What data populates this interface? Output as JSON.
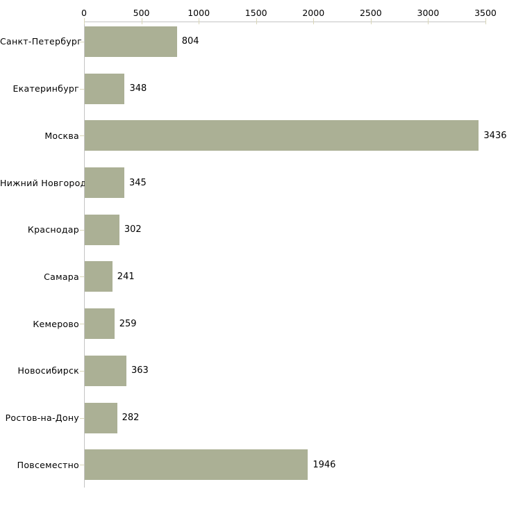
{
  "chart_data": {
    "type": "bar",
    "orientation": "horizontal",
    "title": "",
    "categories": [
      "Санкт-Петербург",
      "Екатеринбург",
      "Москва",
      "Нижний Новгород",
      "Краснодар",
      "Самара",
      "Кемерово",
      "Новосибирск",
      "Ростов-на-Дону",
      "Повсеместно"
    ],
    "values": [
      804,
      348,
      3436,
      345,
      302,
      241,
      259,
      363,
      282,
      1946
    ],
    "value_labels": [
      "804",
      "348",
      "3436",
      "345",
      "302",
      "241",
      "259",
      "363",
      "282",
      "1946"
    ],
    "xlim": [
      0,
      3500
    ],
    "x_ticks": [
      0,
      500,
      1000,
      1500,
      2000,
      2500,
      3000,
      3500
    ],
    "x_tick_labels": [
      "0",
      "500",
      "1000",
      "1500",
      "2000",
      "2500",
      "3000",
      "3500"
    ],
    "axis_position": "top",
    "grid": false,
    "legend": "none",
    "colors": {
      "bar": "#abb095",
      "axis_line": "#c3c3c3",
      "tick": "#d9d6b8",
      "text": "#000000",
      "background": "#ffffff"
    }
  }
}
